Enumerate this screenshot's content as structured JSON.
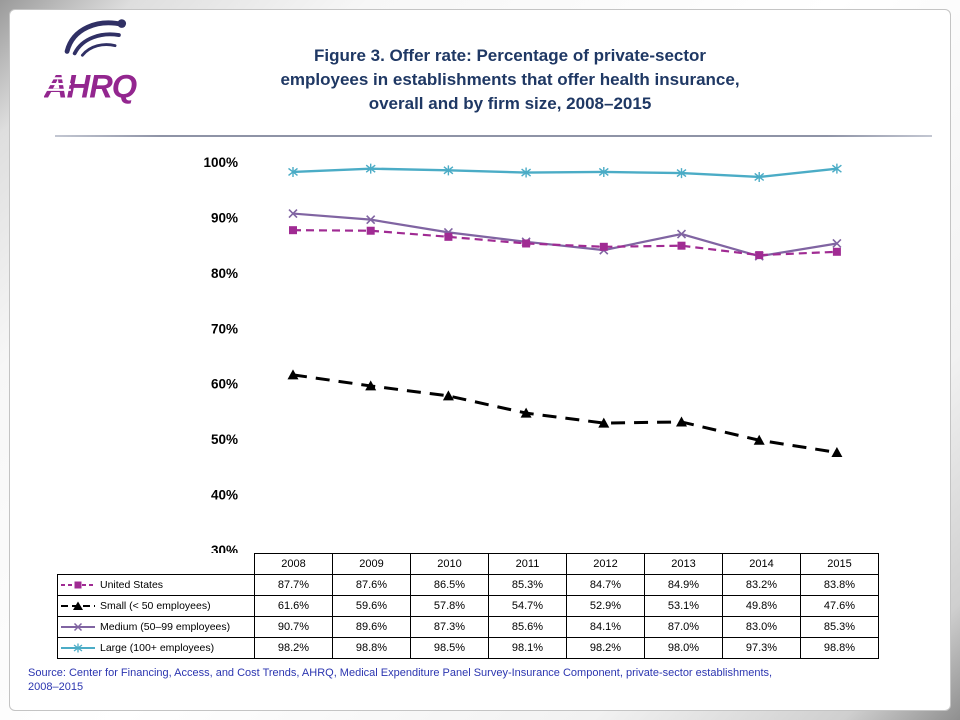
{
  "header": {
    "logo_text": "AHRQ",
    "title_lines": [
      "Figure 3. Offer rate: Percentage of private-sector",
      "employees in establishments that offer health insurance,",
      "overall and by firm size, 2008–2015"
    ]
  },
  "colors": {
    "title": "#1F3864",
    "source_text": "#2B35B0",
    "logo_wordmark": "#93268F",
    "logo_eagle": "#303065"
  },
  "chart_data": {
    "type": "line",
    "title": "Figure 3. Offer rate: Percentage of private-sector employees in establishments that offer health insurance, overall and by firm size, 2008–2015",
    "x": [
      "2008",
      "2009",
      "2010",
      "2011",
      "2012",
      "2013",
      "2014",
      "2015"
    ],
    "xlabel": "",
    "ylabel": "",
    "ylim": [
      30,
      100
    ],
    "ytick_step": 10,
    "ytick_suffix": "%",
    "value_suffix": "%",
    "grid": false,
    "legend_position": "table-left",
    "series": [
      {
        "name": "United States",
        "values": [
          87.7,
          87.6,
          86.5,
          85.3,
          84.7,
          84.9,
          83.2,
          83.8
        ],
        "color": "#A02B93",
        "marker": "square",
        "dash": "8,5",
        "legend_dash": "4,3",
        "width": 2.2
      },
      {
        "name": "Small (< 50 employees)",
        "values": [
          61.6,
          59.6,
          57.8,
          54.7,
          52.9,
          53.1,
          49.8,
          47.6
        ],
        "color": "#000000",
        "marker": "triangle",
        "dash": "14,9",
        "legend_dash": "7,4",
        "width": 3
      },
      {
        "name": "Medium (50–99 employees)",
        "values": [
          90.7,
          89.6,
          87.3,
          85.6,
          84.1,
          87.0,
          83.0,
          85.3
        ],
        "color": "#8064A2",
        "marker": "x",
        "dash": "",
        "legend_dash": "",
        "width": 2.2
      },
      {
        "name": "Large (100+ employees)",
        "values": [
          98.2,
          98.8,
          98.5,
          98.1,
          98.2,
          98.0,
          97.3,
          98.8
        ],
        "color": "#4BACC6",
        "marker": "star",
        "dash": "",
        "legend_dash": "",
        "width": 2.4
      }
    ]
  },
  "footer": {
    "source_lines": [
      "Source: Center for Financing, Access, and Cost Trends, AHRQ, Medical Expenditure Panel Survey-Insurance Component, private-sector establishments,",
      "2008–2015"
    ]
  }
}
